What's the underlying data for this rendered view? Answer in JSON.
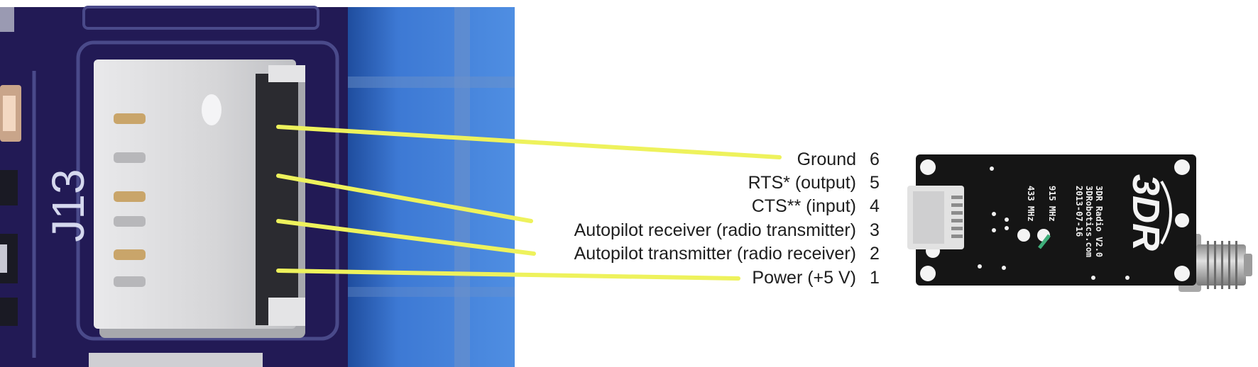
{
  "pcb_photo": {
    "silkscreen_label": "J13",
    "colors": {
      "board": "#221a55",
      "blue_surface": "#3d79d4",
      "connector_body": "#d7d7d9"
    }
  },
  "wiring": {
    "line_color": "#eef25c",
    "pins": [
      {
        "label": "Ground",
        "number": "6"
      },
      {
        "label": "RTS* (output)",
        "number": "5"
      },
      {
        "label": "CTS** (input)",
        "number": "4"
      },
      {
        "label": "Autopilot receiver (radio transmitter)",
        "number": "3"
      },
      {
        "label": "Autopilot transmitter (radio receiver)",
        "number": "2"
      },
      {
        "label": "Power (+5 V)",
        "number": "1"
      }
    ]
  },
  "radio_module": {
    "logo": "3DR",
    "silkscreen_lines": [
      "3DR Radio V2.0",
      "3DRobotics.com",
      "2013-07-16"
    ],
    "frequency_labels": [
      "915 MHz",
      "433 MHz"
    ],
    "colors": {
      "board": "#151515",
      "connector": "#e2e2e2",
      "antenna": "#b4b4b4"
    }
  }
}
